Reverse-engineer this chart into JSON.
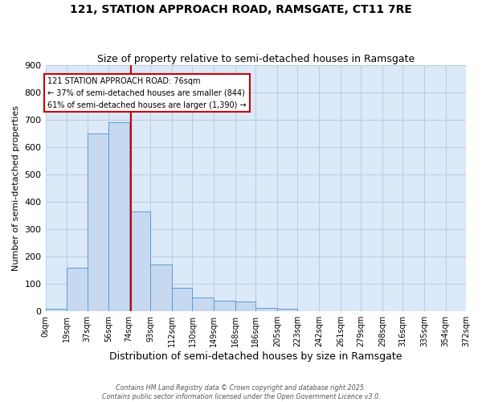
{
  "title": "121, STATION APPROACH ROAD, RAMSGATE, CT11 7RE",
  "subtitle": "Size of property relative to semi-detached houses in Ramsgate",
  "xlabel": "Distribution of semi-detached houses by size in Ramsgate",
  "ylabel": "Number of semi-detached properties",
  "bin_edges": [
    0,
    19,
    37,
    56,
    74,
    93,
    112,
    130,
    149,
    168,
    186,
    205,
    223,
    242,
    261,
    279,
    298,
    316,
    335,
    354,
    372
  ],
  "bar_heights": [
    8,
    160,
    650,
    690,
    365,
    170,
    85,
    50,
    40,
    35,
    12,
    10,
    0,
    0,
    0,
    0,
    0,
    0,
    0,
    0
  ],
  "bar_color": "#c6d9f1",
  "bar_edge_color": "#5b9bd5",
  "background_color": "#ffffff",
  "plot_bg_color": "#dce9f8",
  "grid_color": "#b8cfe8",
  "property_size": 76,
  "property_line_color": "#cc0000",
  "annotation_text": "121 STATION APPROACH ROAD: 76sqm\n← 37% of semi-detached houses are smaller (844)\n61% of semi-detached houses are larger (1,390) →",
  "annotation_box_color": "#ffffff",
  "annotation_box_edge_color": "#cc0000",
  "ylim": [
    0,
    900
  ],
  "yticks": [
    0,
    100,
    200,
    300,
    400,
    500,
    600,
    700,
    800,
    900
  ],
  "tick_labels": [
    "0sqm",
    "19sqm",
    "37sqm",
    "56sqm",
    "74sqm",
    "93sqm",
    "112sqm",
    "130sqm",
    "149sqm",
    "168sqm",
    "186sqm",
    "205sqm",
    "223sqm",
    "242sqm",
    "261sqm",
    "279sqm",
    "298sqm",
    "316sqm",
    "335sqm",
    "354sqm",
    "372sqm"
  ],
  "footer_line1": "Contains HM Land Registry data © Crown copyright and database right 2025.",
  "footer_line2": "Contains public sector information licensed under the Open Government Licence v3.0."
}
